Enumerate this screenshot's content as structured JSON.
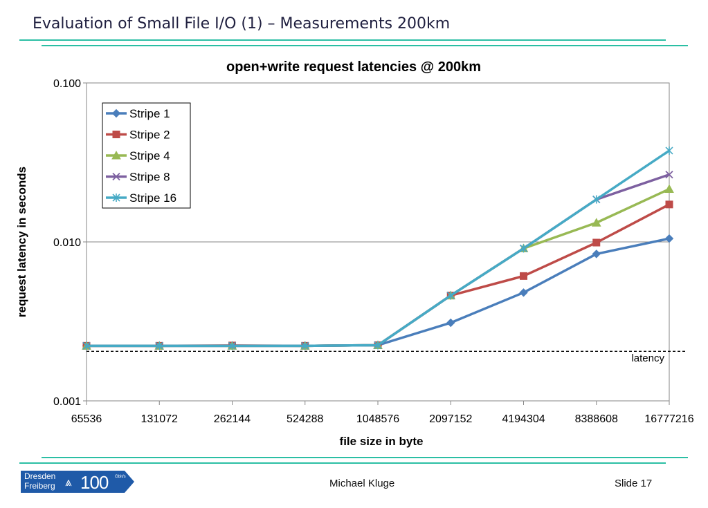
{
  "slide": {
    "title": "Evaluation of Small File I/O (1) – Measurements 200km",
    "author": "Michael Kluge",
    "slide_number": "Slide 17",
    "logo": {
      "line1": "Dresden",
      "line2": "Freiberg",
      "number": "100",
      "unit": "Gbit/s",
      "symbol": "⩓"
    },
    "accent_color": "#2bbfa4"
  },
  "chart_data": {
    "type": "line",
    "title": "open+write request latencies @ 200km",
    "xlabel": "file size in byte",
    "ylabel": "request latency in seconds",
    "yscale": "log",
    "ylim": [
      0.001,
      0.1
    ],
    "y_ticks": [
      "0.001",
      "0.010",
      "0.100"
    ],
    "categories": [
      "65536",
      "131072",
      "262144",
      "524288",
      "1048576",
      "2097152",
      "4194304",
      "8388608",
      "16777216"
    ],
    "legend_position": "top-left",
    "series": [
      {
        "name": "Stripe 1",
        "color": "#4a7ebb",
        "marker": "diamond",
        "values": [
          0.00222,
          0.00222,
          0.00222,
          0.00222,
          0.00224,
          0.0031,
          0.0048,
          0.0084,
          0.0105
        ]
      },
      {
        "name": "Stripe 2",
        "color": "#be4b48",
        "marker": "square",
        "values": [
          0.00222,
          0.00222,
          0.00223,
          0.00222,
          0.00224,
          0.0046,
          0.0061,
          0.0099,
          0.0172
        ]
      },
      {
        "name": "Stripe 4",
        "color": "#98b954",
        "marker": "triangle",
        "values": [
          0.00222,
          0.00222,
          0.00222,
          0.00222,
          0.00224,
          0.0046,
          0.0091,
          0.0132,
          0.0215
        ]
      },
      {
        "name": "Stripe 8",
        "color": "#7d60a0",
        "marker": "x",
        "values": [
          0.00222,
          0.00222,
          0.00222,
          0.00222,
          0.00224,
          0.0046,
          0.0091,
          0.0185,
          0.0265
        ]
      },
      {
        "name": "Stripe 16",
        "color": "#46aac5",
        "marker": "star",
        "values": [
          0.00222,
          0.00222,
          0.00222,
          0.00222,
          0.00224,
          0.0046,
          0.0091,
          0.0185,
          0.0375
        ]
      }
    ],
    "reference_line": {
      "label": "latency",
      "value": 0.00205,
      "style": "dashed"
    },
    "grid": true
  }
}
